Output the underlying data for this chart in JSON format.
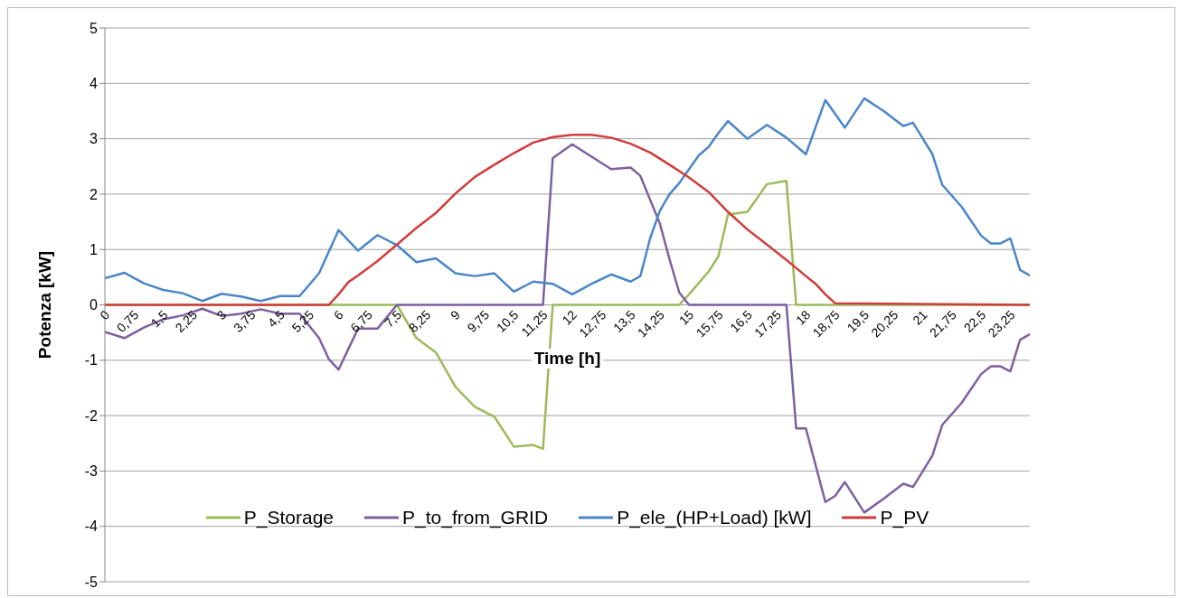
{
  "chart_data": {
    "type": "line",
    "xlabel": "Time [h]",
    "ylabel": "Potenza [kW]",
    "xlim": [
      0,
      23.75
    ],
    "ylim": [
      -5,
      5
    ],
    "yticks": [
      -5,
      -4,
      -3,
      -2,
      -1,
      0,
      1,
      2,
      3,
      4,
      5
    ],
    "xticks": [
      0,
      {
        "value": 0.75,
        "label": "0,75"
      },
      {
        "value": 1.5,
        "label": "1,5"
      },
      {
        "value": 2.25,
        "label": "2,25"
      },
      3,
      {
        "value": 3.75,
        "label": "3,75"
      },
      {
        "value": 4.5,
        "label": "4,5"
      },
      {
        "value": 5.25,
        "label": "5,25"
      },
      6,
      {
        "value": 6.75,
        "label": "6,75"
      },
      {
        "value": 7.5,
        "label": "7,5"
      },
      {
        "value": 8.25,
        "label": "8,25"
      },
      9,
      {
        "value": 9.75,
        "label": "9,75"
      },
      {
        "value": 10.5,
        "label": "10,5"
      },
      {
        "value": 11.25,
        "label": "11,25"
      },
      12,
      {
        "value": 12.75,
        "label": "12,75"
      },
      {
        "value": 13.5,
        "label": "13,5"
      },
      {
        "value": 14.25,
        "label": "14,25"
      },
      15,
      {
        "value": 15.75,
        "label": "15,75"
      },
      {
        "value": 16.5,
        "label": "16,5"
      },
      {
        "value": 17.25,
        "label": "17,25"
      },
      18,
      {
        "value": 18.75,
        "label": "18,75"
      },
      {
        "value": 19.5,
        "label": "19,5"
      },
      {
        "value": 20.25,
        "label": "20,25"
      },
      21,
      {
        "value": 21.75,
        "label": "21,75"
      },
      {
        "value": 22.5,
        "label": "22,5"
      },
      {
        "value": 23.25,
        "label": "23,25"
      }
    ],
    "grid": "y",
    "legend": "bottom",
    "marker": "none",
    "line_style": "solid",
    "series": [
      {
        "name": "P_Storage",
        "color": "#9bbb59",
        "x": [
          0,
          7.5,
          8,
          8.5,
          9,
          9.5,
          10,
          10.5,
          11,
          11.25,
          11.5,
          14.75,
          15,
          15.5,
          15.75,
          16,
          16.5,
          17,
          17.5,
          17.75,
          23.75
        ],
        "values": [
          0,
          0,
          -0.6,
          -0.86,
          -1.48,
          -1.84,
          -2.02,
          -2.56,
          -2.53,
          -2.6,
          0,
          0,
          0.19,
          0.6,
          0.87,
          1.63,
          1.68,
          2.18,
          2.24,
          0,
          0
        ]
      },
      {
        "name": "P_to_from_GRID",
        "color": "#7d60a0",
        "x": [
          0,
          0.5,
          1,
          1.5,
          2,
          2.5,
          3,
          3.5,
          4,
          4.5,
          5,
          5.5,
          5.75,
          6,
          6.5,
          7,
          7.5,
          11.25,
          11.5,
          12,
          13,
          13.5,
          13.75,
          14.25,
          14.5,
          14.75,
          15,
          17.5,
          17.75,
          18,
          18.5,
          18.75,
          19,
          19.5,
          20,
          20.5,
          20.75,
          21.25,
          21.5,
          22,
          22.5,
          22.75,
          23,
          23.25,
          23.5,
          23.75
        ],
        "values": [
          -0.49,
          -0.6,
          -0.41,
          -0.26,
          -0.19,
          -0.07,
          -0.2,
          -0.16,
          -0.08,
          -0.16,
          -0.16,
          -0.6,
          -0.98,
          -1.17,
          -0.43,
          -0.43,
          0,
          0,
          2.65,
          2.9,
          2.45,
          2.48,
          2.33,
          1.47,
          0.82,
          0.22,
          0,
          0,
          -2.23,
          -2.23,
          -3.56,
          -3.45,
          -3.2,
          -3.75,
          -3.5,
          -3.23,
          -3.29,
          -2.72,
          -2.17,
          -1.77,
          -1.25,
          -1.11,
          -1.11,
          -1.2,
          -0.63,
          -0.53
        ]
      },
      {
        "name": "P_ele_(HP+Load) [kW]",
        "color": "#4a86c8",
        "x": [
          0,
          0.5,
          1,
          1.5,
          2,
          2.5,
          3,
          3.5,
          4,
          4.5,
          5,
          5.5,
          6,
          6.5,
          7,
          7.5,
          8,
          8.5,
          9,
          9.5,
          10,
          10.5,
          11,
          11.5,
          12,
          12.5,
          13,
          13.5,
          13.75,
          14,
          14.25,
          14.5,
          14.75,
          15,
          15.25,
          15.5,
          15.75,
          16,
          16.5,
          17,
          17.5,
          18,
          18.5,
          19,
          19.5,
          20,
          20.5,
          20.75,
          21.25,
          21.5,
          22,
          22.5,
          22.75,
          23,
          23.25,
          23.5,
          23.75
        ],
        "values": [
          0.48,
          0.58,
          0.39,
          0.27,
          0.21,
          0.07,
          0.2,
          0.15,
          0.07,
          0.16,
          0.16,
          0.57,
          1.35,
          0.98,
          1.26,
          1.08,
          0.77,
          0.84,
          0.57,
          0.52,
          0.57,
          0.24,
          0.42,
          0.38,
          0.19,
          0.38,
          0.55,
          0.42,
          0.52,
          1.2,
          1.7,
          2.0,
          2.2,
          2.45,
          2.7,
          2.85,
          3.1,
          3.32,
          3.0,
          3.25,
          3.02,
          2.72,
          3.7,
          3.2,
          3.73,
          3.5,
          3.23,
          3.29,
          2.72,
          2.17,
          1.77,
          1.25,
          1.11,
          1.11,
          1.2,
          0.63,
          0.53
        ]
      },
      {
        "name": "P_PV",
        "color": "#d03c3c",
        "x": [
          0,
          5.75,
          6,
          6.25,
          6.5,
          7,
          7.5,
          8,
          8.5,
          9,
          9.5,
          10,
          10.5,
          11,
          11.5,
          12,
          12.5,
          13,
          13.5,
          14,
          14.5,
          15,
          15.5,
          16,
          16.5,
          17,
          17.5,
          18,
          18.25,
          18.5,
          18.75,
          23.75
        ],
        "values": [
          0,
          0,
          0.19,
          0.41,
          0.53,
          0.79,
          1.09,
          1.39,
          1.66,
          2.01,
          2.31,
          2.53,
          2.74,
          2.93,
          3.03,
          3.07,
          3.07,
          3.02,
          2.91,
          2.75,
          2.53,
          2.3,
          2.04,
          1.68,
          1.36,
          1.09,
          0.81,
          0.52,
          0.38,
          0.19,
          0.03,
          0
        ]
      }
    ]
  }
}
